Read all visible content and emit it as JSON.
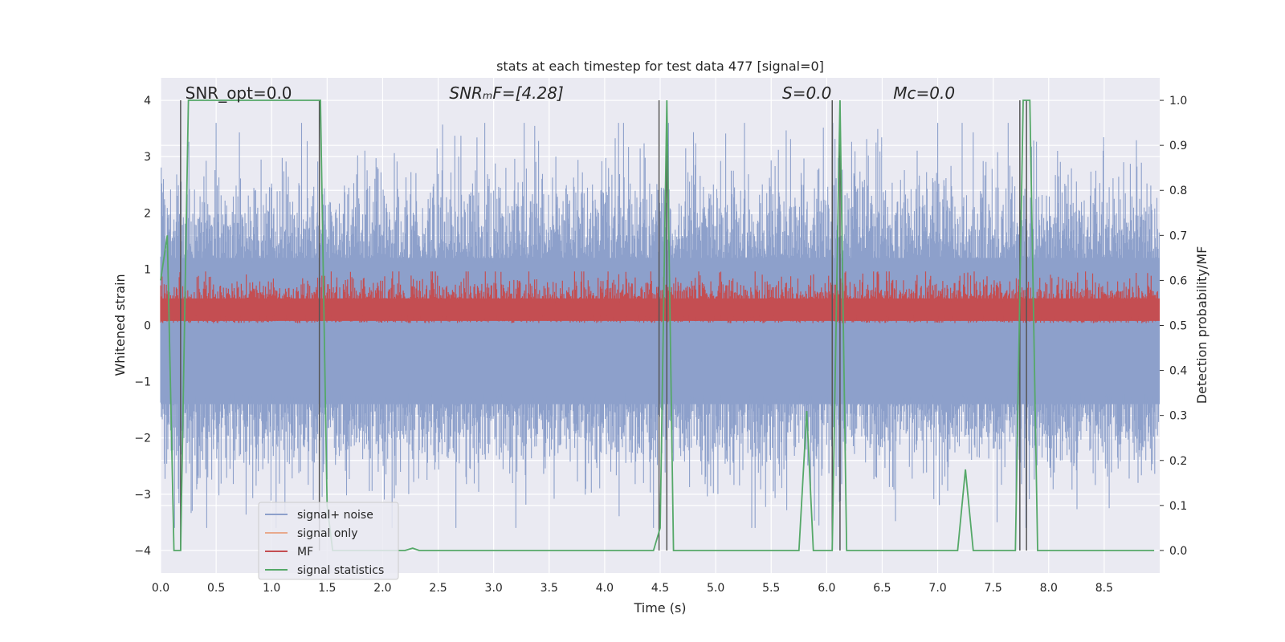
{
  "chart_data": {
    "type": "line",
    "title": "stats at each timestep for test data 477 [signal=0]",
    "xlabel": "Time (s)",
    "ylabel_left": "Whitened strain",
    "ylabel_right": "Detection probability/MF",
    "xlim": [
      0,
      9.0
    ],
    "ylim_left": [
      -4.4,
      4.4
    ],
    "ylim_right": [
      -0.05,
      1.05
    ],
    "x_ticks": [
      "0.0",
      "0.5",
      "1.0",
      "1.5",
      "2.0",
      "2.5",
      "3.0",
      "3.5",
      "4.0",
      "4.5",
      "5.0",
      "5.5",
      "6.0",
      "6.5",
      "7.0",
      "7.5",
      "8.0",
      "8.5"
    ],
    "y_ticks_left": [
      "−4",
      "−3",
      "−2",
      "−1",
      "0",
      "1",
      "2",
      "3",
      "4"
    ],
    "y_ticks_right": [
      "0.0",
      "0.1",
      "0.2",
      "0.3",
      "0.4",
      "0.5",
      "0.6",
      "0.7",
      "0.8",
      "0.9",
      "1.0"
    ],
    "grid": true,
    "annotations": [
      {
        "text": "SNR_opt=0.0",
        "x": 0.2
      },
      {
        "text": "SNRₘF=[4.28]",
        "x": 2.6
      },
      {
        "text": "S=0.0",
        "x": 5.6
      },
      {
        "text": "Mᴄ=0.0",
        "x": 6.6
      }
    ],
    "series": [
      {
        "name": "signal+ noise",
        "color": "#8da0cb",
        "description": "noise band ~ -2 to 3 whitened strain"
      },
      {
        "name": "signal only",
        "color": "#e8a98c"
      },
      {
        "name": "MF",
        "color": "#c44e52",
        "band_right_axis": [
          0.5,
          0.58
        ]
      },
      {
        "name": "signal statistics",
        "color": "#55a868",
        "x": [
          0.0,
          0.06,
          0.12,
          0.18,
          0.25,
          1.44,
          1.5,
          1.55,
          2.2,
          2.27,
          2.33,
          4.44,
          4.5,
          4.56,
          4.62,
          5.75,
          5.82,
          5.88,
          6.05,
          6.12,
          6.18,
          7.18,
          7.25,
          7.32,
          7.7,
          7.77,
          7.83,
          7.9,
          8.95
        ],
        "y": [
          0.6,
          0.7,
          0.0,
          0.0,
          1.0,
          1.0,
          0.1,
          0.0,
          0.0,
          0.005,
          0.0,
          0.0,
          0.05,
          1.0,
          0.0,
          0.0,
          0.31,
          0.0,
          0.0,
          1.0,
          0.0,
          0.0,
          0.18,
          0.0,
          0.0,
          1.0,
          1.0,
          0.0,
          0.0
        ]
      }
    ],
    "vlines": [
      0.18,
      1.43,
      4.49,
      4.56,
      6.05,
      6.12,
      7.74,
      7.8
    ],
    "legend_position": "lower-left"
  }
}
